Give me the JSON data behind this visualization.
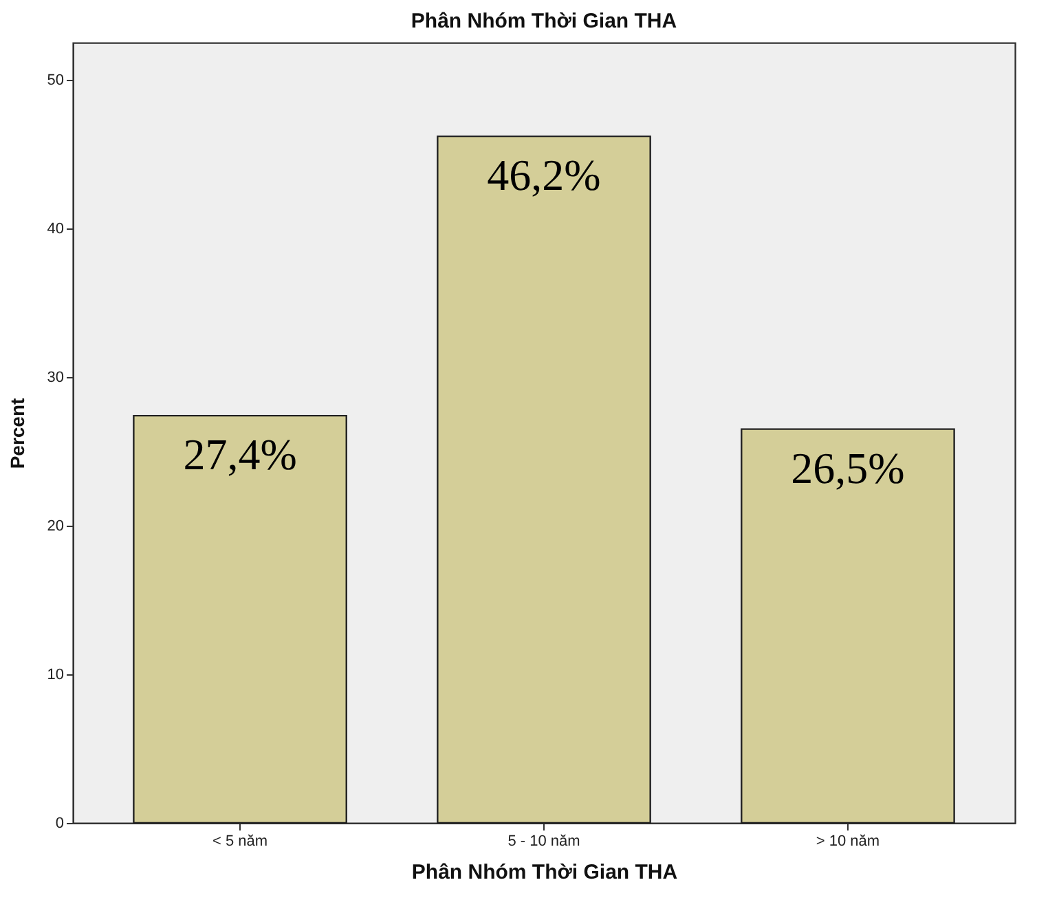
{
  "chart_data": {
    "type": "bar",
    "title": "Phân Nhóm Thời Gian THA",
    "xlabel": "Phân Nhóm Thời Gian THA",
    "ylabel": "Percent",
    "categories": [
      "< 5 năm",
      "5 - 10 năm",
      "> 10 năm"
    ],
    "values": [
      27.4,
      46.2,
      26.5
    ],
    "value_labels": [
      "27,4%",
      "46,2%",
      "26,5%"
    ],
    "color": "#d4ce98",
    "ylim": [
      0,
      52.5
    ],
    "yticks": [
      0,
      10,
      20,
      30,
      40,
      50
    ],
    "grid": false
  }
}
